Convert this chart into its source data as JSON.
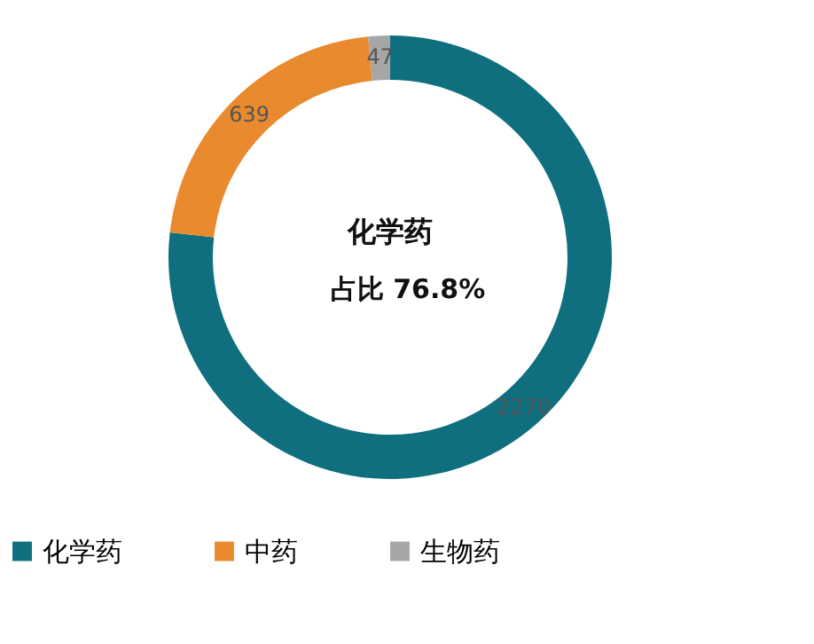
{
  "chart_data": {
    "type": "donut",
    "title": "化学药",
    "annotations": [
      "占比 76.8%"
    ],
    "categories": [
      "化学药",
      "中药",
      "生物药"
    ],
    "values": [
      2270,
      639,
      47
    ],
    "colors": [
      "#0f6f7f",
      "#ea8a2e",
      "#a6a6a6"
    ],
    "data_labels": true,
    "legend": "bottom"
  }
}
